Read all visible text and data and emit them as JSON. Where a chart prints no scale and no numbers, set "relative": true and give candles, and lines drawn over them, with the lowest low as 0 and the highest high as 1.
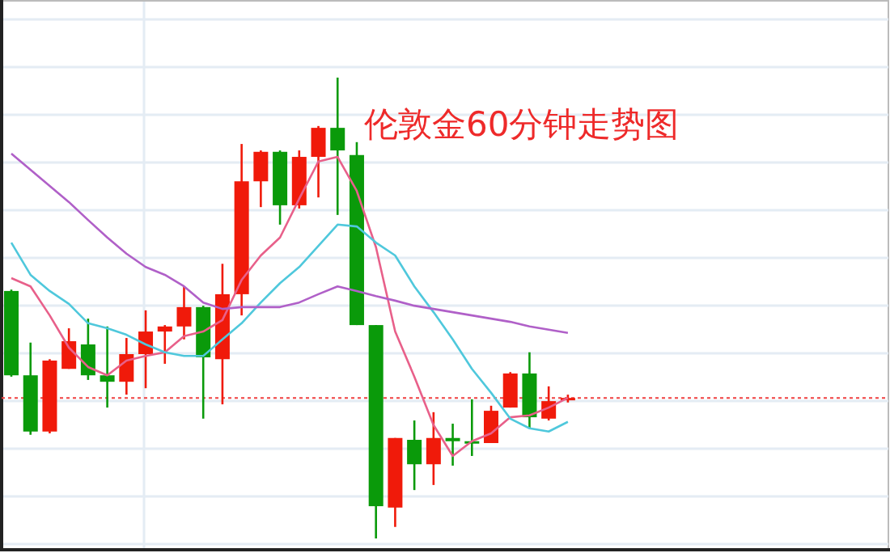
{
  "chart_data": {
    "type": "candlestick",
    "title": "伦敦金60分钟走势图",
    "relative": true,
    "grid": true,
    "categories": [
      null,
      null,
      null,
      null,
      null,
      null,
      null,
      null,
      null,
      null,
      null,
      null,
      null,
      null,
      null,
      null,
      null,
      null,
      null,
      null,
      null,
      null,
      null,
      null,
      null,
      null,
      null,
      null,
      null,
      null
    ],
    "ohlc": [
      [
        0.537,
        0.54,
        0.351,
        0.354
      ],
      [
        0.354,
        0.425,
        0.225,
        0.232
      ],
      [
        0.232,
        0.389,
        0.228,
        0.386
      ],
      [
        0.368,
        0.456,
        0.368,
        0.428
      ],
      [
        0.421,
        0.477,
        0.344,
        0.354
      ],
      [
        0.354,
        0.46,
        0.284,
        0.34
      ],
      [
        0.34,
        0.435,
        0.312,
        0.4
      ],
      [
        0.4,
        0.495,
        0.326,
        0.449
      ],
      [
        0.449,
        0.463,
        0.379,
        0.46
      ],
      [
        0.46,
        0.547,
        0.432,
        0.502
      ],
      [
        0.502,
        0.505,
        0.26,
        0.393
      ],
      [
        0.389,
        0.596,
        0.291,
        0.53
      ],
      [
        0.53,
        0.856,
        0.484,
        0.775
      ],
      [
        0.775,
        0.842,
        0.719,
        0.839
      ],
      [
        0.839,
        0.842,
        0.681,
        0.723
      ],
      [
        0.723,
        0.842,
        0.716,
        0.828
      ],
      [
        0.828,
        0.895,
        0.74,
        0.891
      ],
      [
        0.891,
        1,
        0.702,
        0.842
      ],
      [
        0.832,
        0.86,
        0.463,
        0.463
      ],
      [
        0.463,
        0.463,
        0,
        0.07
      ],
      [
        0.067,
        0.218,
        0.025,
        0.218
      ],
      [
        0.214,
        0.256,
        0.105,
        0.161
      ],
      [
        0.161,
        0.274,
        0.116,
        0.218
      ],
      [
        0.218,
        0.249,
        0.158,
        0.211
      ],
      [
        0.211,
        0.302,
        0.179,
        0.207
      ],
      [
        0.207,
        0.288,
        0.207,
        0.277
      ],
      [
        0.284,
        0.361,
        0.284,
        0.358
      ],
      [
        0.358,
        0.404,
        0.239,
        0.263
      ],
      [
        0.26,
        0.33,
        0.256,
        0.298
      ],
      [
        0.302,
        0.312,
        0.295,
        0.305
      ]
    ],
    "colors": [
      "#0a9a0a",
      "#0a9a0a",
      "#f01a0a",
      "#f01a0a",
      "#0a9a0a",
      "#0a9a0a",
      "#f01a0a",
      "#f01a0a",
      "#f01a0a",
      "#f01a0a",
      "#0a9a0a",
      "#f01a0a",
      "#f01a0a",
      "#f01a0a",
      "#0a9a0a",
      "#f01a0a",
      "#f01a0a",
      "#0a9a0a",
      "#0a9a0a",
      "#0a9a0a",
      "#f01a0a",
      "#0a9a0a",
      "#f01a0a",
      "#0a9a0a",
      "#0a9a0a",
      "#f01a0a",
      "#f01a0a",
      "#0a9a0a",
      "#f01a0a",
      "#f01a0a"
    ],
    "series": [
      {
        "type": "line",
        "color": "#e8608a",
        "values": [
          0.565,
          0.547,
          0.484,
          0.414,
          0.372,
          0.354,
          0.386,
          0.396,
          0.404,
          0.439,
          0.449,
          0.474,
          0.561,
          0.614,
          0.653,
          0.737,
          0.818,
          0.828,
          0.754,
          0.632,
          0.449,
          0.351,
          0.246,
          0.179,
          0.211,
          0.228,
          0.263,
          0.267,
          0.284,
          0.305
        ]
      },
      {
        "type": "line",
        "color": "#4fc8dc",
        "values": [
          0.642,
          0.572,
          0.537,
          0.509,
          0.467,
          0.456,
          0.442,
          0.421,
          0.404,
          0.396,
          0.396,
          0.432,
          0.467,
          0.512,
          0.554,
          0.589,
          0.635,
          0.681,
          0.677,
          0.642,
          0.614,
          0.547,
          0.491,
          0.432,
          0.368,
          0.316,
          0.26,
          0.239,
          0.232,
          0.253
        ]
      },
      {
        "type": "line",
        "color": "#b060c8",
        "values": [
          0.835,
          0.8,
          0.765,
          0.73,
          0.691,
          0.653,
          0.618,
          0.589,
          0.572,
          0.547,
          0.512,
          0.498,
          0.502,
          0.502,
          0.502,
          0.512,
          0.53,
          0.547,
          0.537,
          0.526,
          0.516,
          0.505,
          0.498,
          0.491,
          0.484,
          0.477,
          0.47,
          0.46,
          0.453,
          0.446
        ]
      }
    ],
    "ref_lines": [
      {
        "axis": "y",
        "value": 0.305,
        "color": "#f04040",
        "line_style": "dotted"
      }
    ]
  }
}
